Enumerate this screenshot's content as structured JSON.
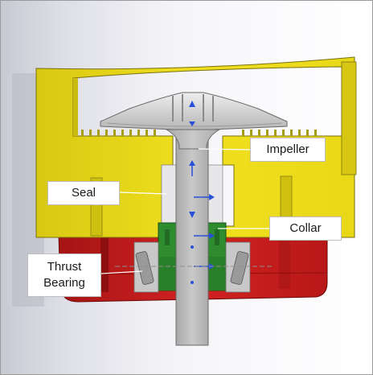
{
  "labels": {
    "impeller": "Impeller",
    "seal": "Seal",
    "collar": "Collar",
    "thrust_bearing_line1": "Thrust",
    "thrust_bearing_line2": "Bearing"
  },
  "colors": {
    "housing": "#ecdc18",
    "housing_shadow": "#c9bb10",
    "base": "#c81c1c",
    "base_shadow": "#8e0f0f",
    "collar": "#2f8c2f",
    "shaft": "#b9b9b9",
    "impeller": "#cfcfcf",
    "arrow": "#2850d8"
  }
}
